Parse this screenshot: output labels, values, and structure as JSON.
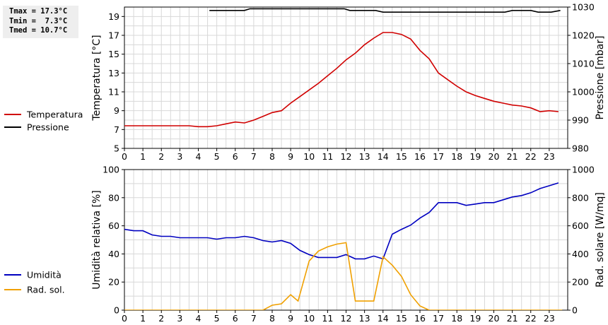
{
  "stats": [
    {
      "label": "Tmax",
      "value": "17.3°C"
    },
    {
      "label": "Tmin",
      "value": " 7.3°C"
    },
    {
      "label": "Tmed",
      "value": "10.7°C"
    }
  ],
  "chart_data": [
    {
      "type": "line",
      "ylabel": "Temperatura [°C]",
      "y2label": "Pressione [mbar]",
      "ylim": [
        5,
        20
      ],
      "y2lim": [
        980,
        1030
      ],
      "xlim": [
        0,
        24
      ],
      "yticks": [
        5,
        7,
        9,
        11,
        13,
        15,
        17,
        19
      ],
      "y2ticks": [
        980,
        990,
        1000,
        1010,
        1020,
        1030
      ],
      "xticks": [
        0,
        1,
        2,
        3,
        4,
        5,
        6,
        7,
        8,
        9,
        10,
        11,
        12,
        13,
        14,
        15,
        16,
        17,
        18,
        19,
        20,
        21,
        22,
        23
      ],
      "grid": true,
      "legend_position": "left",
      "series": [
        {
          "name": "Temperatura",
          "color": "#d00000",
          "axis": "left",
          "x": [
            0,
            1,
            2,
            3,
            3.5,
            4,
            4.5,
            5,
            5.5,
            6,
            6.5,
            7,
            7.5,
            8,
            8.5,
            9,
            9.5,
            10,
            10.5,
            11,
            11.5,
            12,
            12.5,
            13,
            13.5,
            14,
            14.5,
            15,
            15.5,
            16,
            16.5,
            17,
            17.5,
            18,
            18.5,
            19,
            19.5,
            20,
            20.5,
            21,
            21.5,
            22,
            22.5,
            23,
            23.5
          ],
          "y": [
            7.4,
            7.4,
            7.4,
            7.4,
            7.4,
            7.3,
            7.3,
            7.4,
            7.6,
            7.8,
            7.7,
            8.0,
            8.4,
            8.8,
            9.0,
            9.8,
            10.5,
            11.2,
            11.9,
            12.7,
            13.5,
            14.4,
            15.1,
            16.0,
            16.7,
            17.3,
            17.3,
            17.1,
            16.6,
            15.4,
            14.5,
            13.0,
            12.3,
            11.6,
            11.0,
            10.6,
            10.3,
            10.0,
            9.8,
            9.6,
            9.5,
            9.3,
            8.9,
            9.0,
            8.9
          ]
        },
        {
          "name": "Pressione",
          "color": "#000000",
          "axis": "right",
          "x": [
            4.6,
            6.5,
            6.8,
            11.9,
            12.2,
            13.6,
            14.0,
            20.6,
            21.0,
            22.0,
            22.4,
            23.1,
            23.6
          ],
          "y": [
            1028.8,
            1028.8,
            1029.4,
            1029.4,
            1028.8,
            1028.8,
            1028.2,
            1028.2,
            1028.8,
            1028.8,
            1028.2,
            1028.2,
            1028.8
          ]
        }
      ]
    },
    {
      "type": "line",
      "ylabel": "Umidità relativa [%]",
      "y2label": "Rad. solare [W/mq]",
      "ylim": [
        0,
        100
      ],
      "y2lim": [
        0,
        1000
      ],
      "xlim": [
        0,
        24
      ],
      "yticks": [
        0,
        20,
        40,
        60,
        80,
        100
      ],
      "y2ticks": [
        0,
        200,
        400,
        600,
        800,
        1000
      ],
      "xticks": [
        0,
        1,
        2,
        3,
        4,
        5,
        6,
        7,
        8,
        9,
        10,
        11,
        12,
        13,
        14,
        15,
        16,
        17,
        18,
        19,
        20,
        21,
        22,
        23
      ],
      "grid": true,
      "legend_position": "left",
      "series": [
        {
          "name": "Umidità",
          "color": "#0000c0",
          "axis": "left",
          "x": [
            0,
            0.5,
            1,
            1.5,
            2,
            2.5,
            3,
            3.5,
            4,
            4.5,
            5,
            5.5,
            6,
            6.5,
            7,
            7.5,
            8,
            8.5,
            9,
            9.5,
            10,
            10.5,
            11,
            11.5,
            12,
            12.5,
            13,
            13.5,
            14,
            14.5,
            15,
            15.5,
            16,
            16.5,
            17,
            17.5,
            18,
            18.5,
            19,
            19.5,
            20,
            20.5,
            21,
            21.5,
            22,
            22.5,
            23,
            23.5
          ],
          "y": [
            57.5,
            56.5,
            56.5,
            53.5,
            52.5,
            52.5,
            51.5,
            51.5,
            51.5,
            51.5,
            50.5,
            51.5,
            51.5,
            52.5,
            51.5,
            49.5,
            48.5,
            49.5,
            47.5,
            42.5,
            39.5,
            37.5,
            37.5,
            37.5,
            39.5,
            36.5,
            36.5,
            38.5,
            36.5,
            54.0,
            57.5,
            60.5,
            65.5,
            69.5,
            76.5,
            76.5,
            76.5,
            74.5,
            75.5,
            76.5,
            76.5,
            78.5,
            80.5,
            81.5,
            83.5,
            86.5,
            88.5,
            90.5
          ]
        },
        {
          "name": "Rad. sol.",
          "color": "#f0a000",
          "axis": "right",
          "x": [
            0,
            7.5,
            8,
            8.5,
            9,
            9.4,
            10,
            10.5,
            11,
            11.5,
            12,
            12.5,
            13,
            13.5,
            14,
            14.5,
            15,
            15.5,
            16,
            16.5,
            17,
            23.7
          ],
          "y": [
            0,
            0,
            35,
            45,
            110,
            65,
            350,
            420,
            450,
            470,
            480,
            65,
            65,
            65,
            380,
            320,
            240,
            110,
            30,
            0,
            0,
            0
          ]
        }
      ]
    }
  ]
}
